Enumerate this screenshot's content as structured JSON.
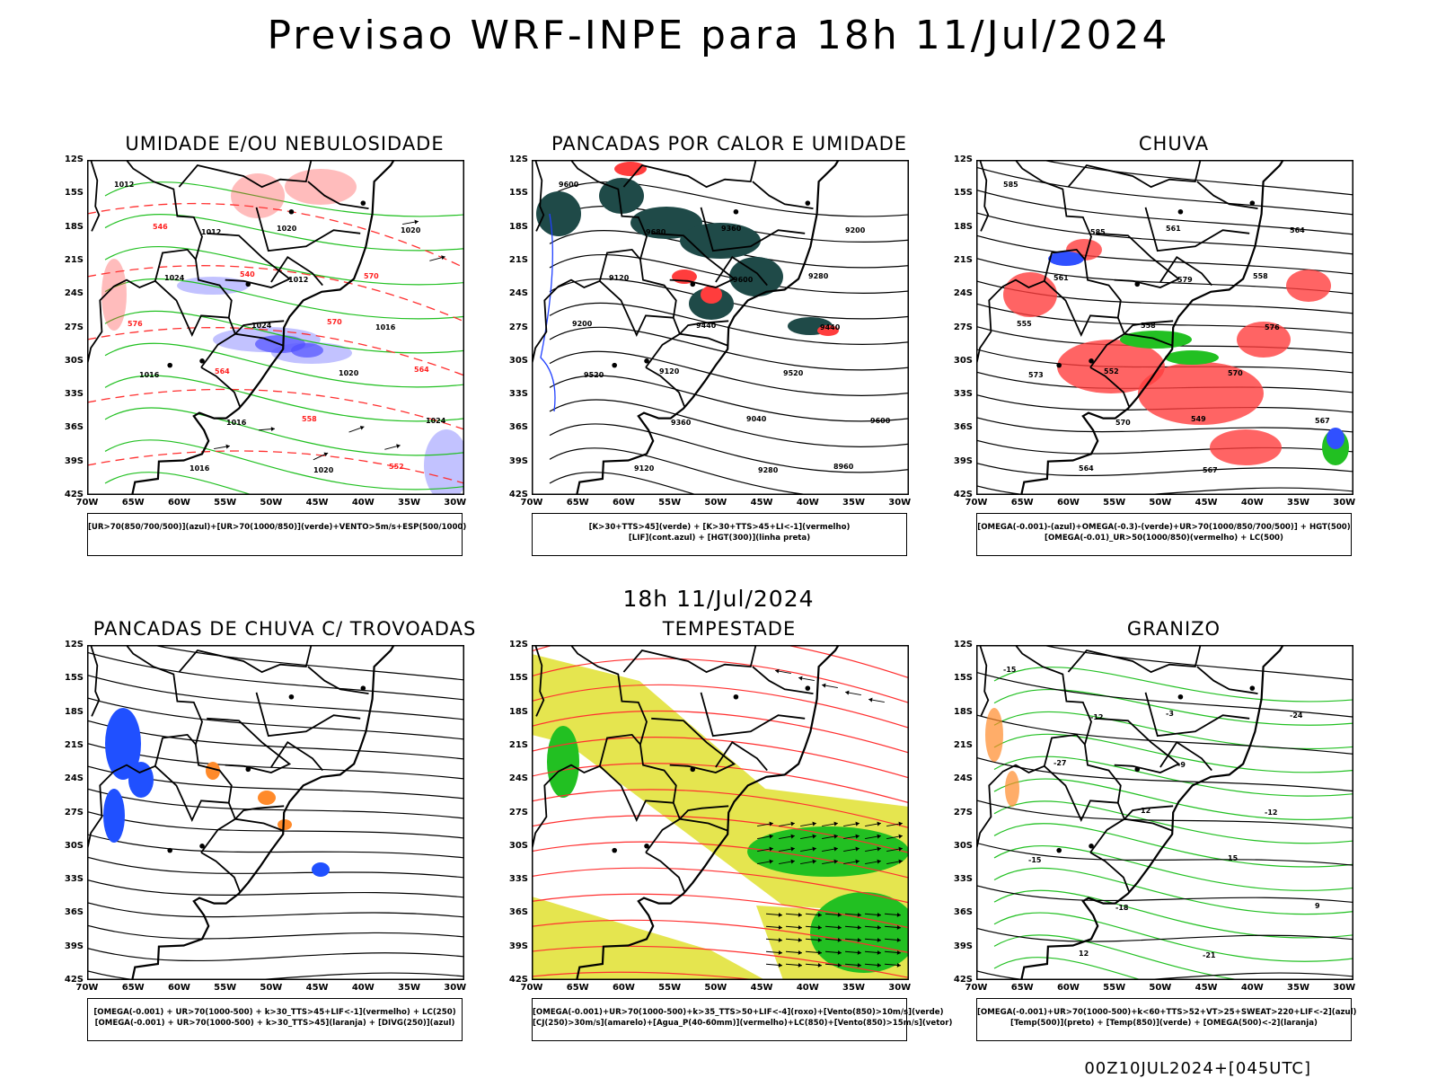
{
  "main_title": "Previsao WRF-INPE  para 18h 11/Jul/2024",
  "mid_title": "18h 11/Jul/2024",
  "footer": "00Z10JUL2024+[045UTC]",
  "lat_labels": [
    "12S",
    "15S",
    "18S",
    "21S",
    "24S",
    "27S",
    "30S",
    "33S",
    "36S",
    "39S",
    "42S"
  ],
  "lon_labels": [
    "70W",
    "65W",
    "60W",
    "55W",
    "50W",
    "45W",
    "40W",
    "35W",
    "30W"
  ],
  "panels": [
    {
      "title": "UMIDADE E/OU NEBULOSIDADE",
      "legend": [
        "[UR>70(850/700/500)](azul)+[UR>70(1000/850)](verde)+VENTO>5m/s+ESP(500/1000)"
      ],
      "contour_labels": [
        "1012",
        "1012",
        "1012",
        "1016",
        "1016",
        "1016",
        "1020",
        "1020",
        "1024",
        "1024",
        "1020",
        "1024",
        "1016",
        "1020",
        "570",
        "576",
        "564",
        "558",
        "552",
        "546",
        "540",
        "570",
        "564"
      ]
    },
    {
      "title": "PANCADAS POR CALOR E UMIDADE",
      "legend": [
        "[K>30+TTS>45](verde) + [K>30+TTS>45+LI<-1](vermelho)",
        "[LIF](cont.azul) + [HGT(300)](linha preta)"
      ],
      "contour_labels": [
        "9600",
        "9680",
        "9600",
        "9440",
        "9520",
        "9360",
        "9280",
        "9200",
        "9120",
        "9440",
        "9520",
        "9600",
        "9120",
        "9360",
        "9280",
        "9200",
        "9120",
        "9040",
        "8960"
      ]
    },
    {
      "title": "CHUVA",
      "legend": [
        "[OMEGA(-0.001)-(azul)+OMEGA(-0.3)-(verde)+UR>70(1000/850/700/500)] + HGT(500)",
        "[OMEGA(-0.01)_UR>50(1000/850)(vermelho) + LC(500)"
      ],
      "contour_labels": [
        "585",
        "585",
        "579",
        "576",
        "573",
        "570",
        "567",
        "564",
        "561",
        "558",
        "570",
        "567",
        "564",
        "561",
        "558",
        "555",
        "552",
        "549"
      ]
    },
    {
      "title": "PANCADAS DE CHUVA C/ TROVOADAS",
      "legend": [
        "[OMEGA(-0.001) + UR>70(1000-500) + k>30_TTS>45+LIF<-1](vermelho) + LC(250)",
        "[OMEGA(-0.001) + UR>70(1000-500) + k>30_TTS>45](laranja) + [DIVG(250)](azul)"
      ],
      "contour_labels": []
    },
    {
      "title": "TEMPESTADE",
      "legend": [
        "[OMEGA(-0.001)+UR>70(1000-500)+k>35_TTS>50+LIF<-4](roxo)+[Vento(850)>10m/s](verde)",
        "[CJ(250)>30m/s](amarelo)+[Agua_P(40-60mm)](vermelho)+LC(850)+[Vento(850)>15m/s](vetor)"
      ],
      "contour_labels": []
    },
    {
      "title": "GRANIZO",
      "legend": [
        "[OMEGA(-0.001)+UR>70(1000-500)+k<60+TTS>52+VT>25+SWEAT>220+LIF<-2](azul)",
        "[Temp(500)](preto) + [Temp(850)](verde) + [OMEGA(500)<-2](laranja)"
      ],
      "contour_labels": [
        "-15",
        "-12",
        "-9",
        "-12",
        "-15",
        "-18",
        "-21",
        "-24",
        "-27",
        "12",
        "15",
        "9",
        "12",
        "-3"
      ]
    }
  ]
}
